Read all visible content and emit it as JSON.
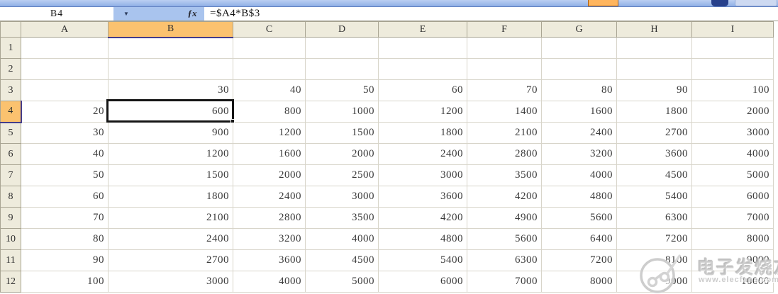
{
  "formula_bar": {
    "name_box_value": "B4",
    "dropdown_glyph": "▼",
    "fx_label": "ƒx",
    "formula": "=$A4*B$3"
  },
  "grid": {
    "columns": [
      "A",
      "B",
      "C",
      "D",
      "E",
      "F",
      "G",
      "H",
      "I"
    ],
    "selected_cell": {
      "ref": "B4",
      "value": "600"
    },
    "rows": [
      {
        "num": "1",
        "cells": [
          "",
          "",
          "",
          "",
          "",
          "",
          "",
          "",
          ""
        ]
      },
      {
        "num": "2",
        "cells": [
          "",
          "",
          "",
          "",
          "",
          "",
          "",
          "",
          ""
        ]
      },
      {
        "num": "3",
        "cells": [
          "",
          "30",
          "40",
          "50",
          "60",
          "70",
          "80",
          "90",
          "100"
        ]
      },
      {
        "num": "4",
        "cells": [
          "20",
          "600",
          "800",
          "1000",
          "1200",
          "1400",
          "1600",
          "1800",
          "2000"
        ]
      },
      {
        "num": "5",
        "cells": [
          "30",
          "900",
          "1200",
          "1500",
          "1800",
          "2100",
          "2400",
          "2700",
          "3000"
        ]
      },
      {
        "num": "6",
        "cells": [
          "40",
          "1200",
          "1600",
          "2000",
          "2400",
          "2800",
          "3200",
          "3600",
          "4000"
        ]
      },
      {
        "num": "7",
        "cells": [
          "50",
          "1500",
          "2000",
          "2500",
          "3000",
          "3500",
          "4000",
          "4500",
          "5000"
        ]
      },
      {
        "num": "8",
        "cells": [
          "60",
          "1800",
          "2400",
          "3000",
          "3600",
          "4200",
          "4800",
          "5400",
          "6000"
        ]
      },
      {
        "num": "9",
        "cells": [
          "70",
          "2100",
          "2800",
          "3500",
          "4200",
          "4900",
          "5600",
          "6300",
          "7000"
        ]
      },
      {
        "num": "10",
        "cells": [
          "80",
          "2400",
          "3200",
          "4000",
          "4800",
          "5600",
          "6400",
          "7200",
          "8000"
        ]
      },
      {
        "num": "11",
        "cells": [
          "90",
          "2700",
          "3600",
          "4500",
          "5400",
          "6300",
          "7200",
          "8100",
          "9000"
        ]
      },
      {
        "num": "12",
        "cells": [
          "100",
          "3000",
          "4000",
          "5000",
          "6000",
          "7000",
          "8000",
          "9000",
          "10000"
        ]
      }
    ]
  },
  "watermark": {
    "brand": "电子发烧友",
    "url": "www.elecfans.com"
  },
  "colors": {
    "selection_orange": "#fbc26f",
    "selection_border_blue": "#433d8b",
    "header_beige": "#eeebdc",
    "toolbar_blue": "#8fafe6",
    "namebox_hover_blue": "#a9c4ee"
  }
}
